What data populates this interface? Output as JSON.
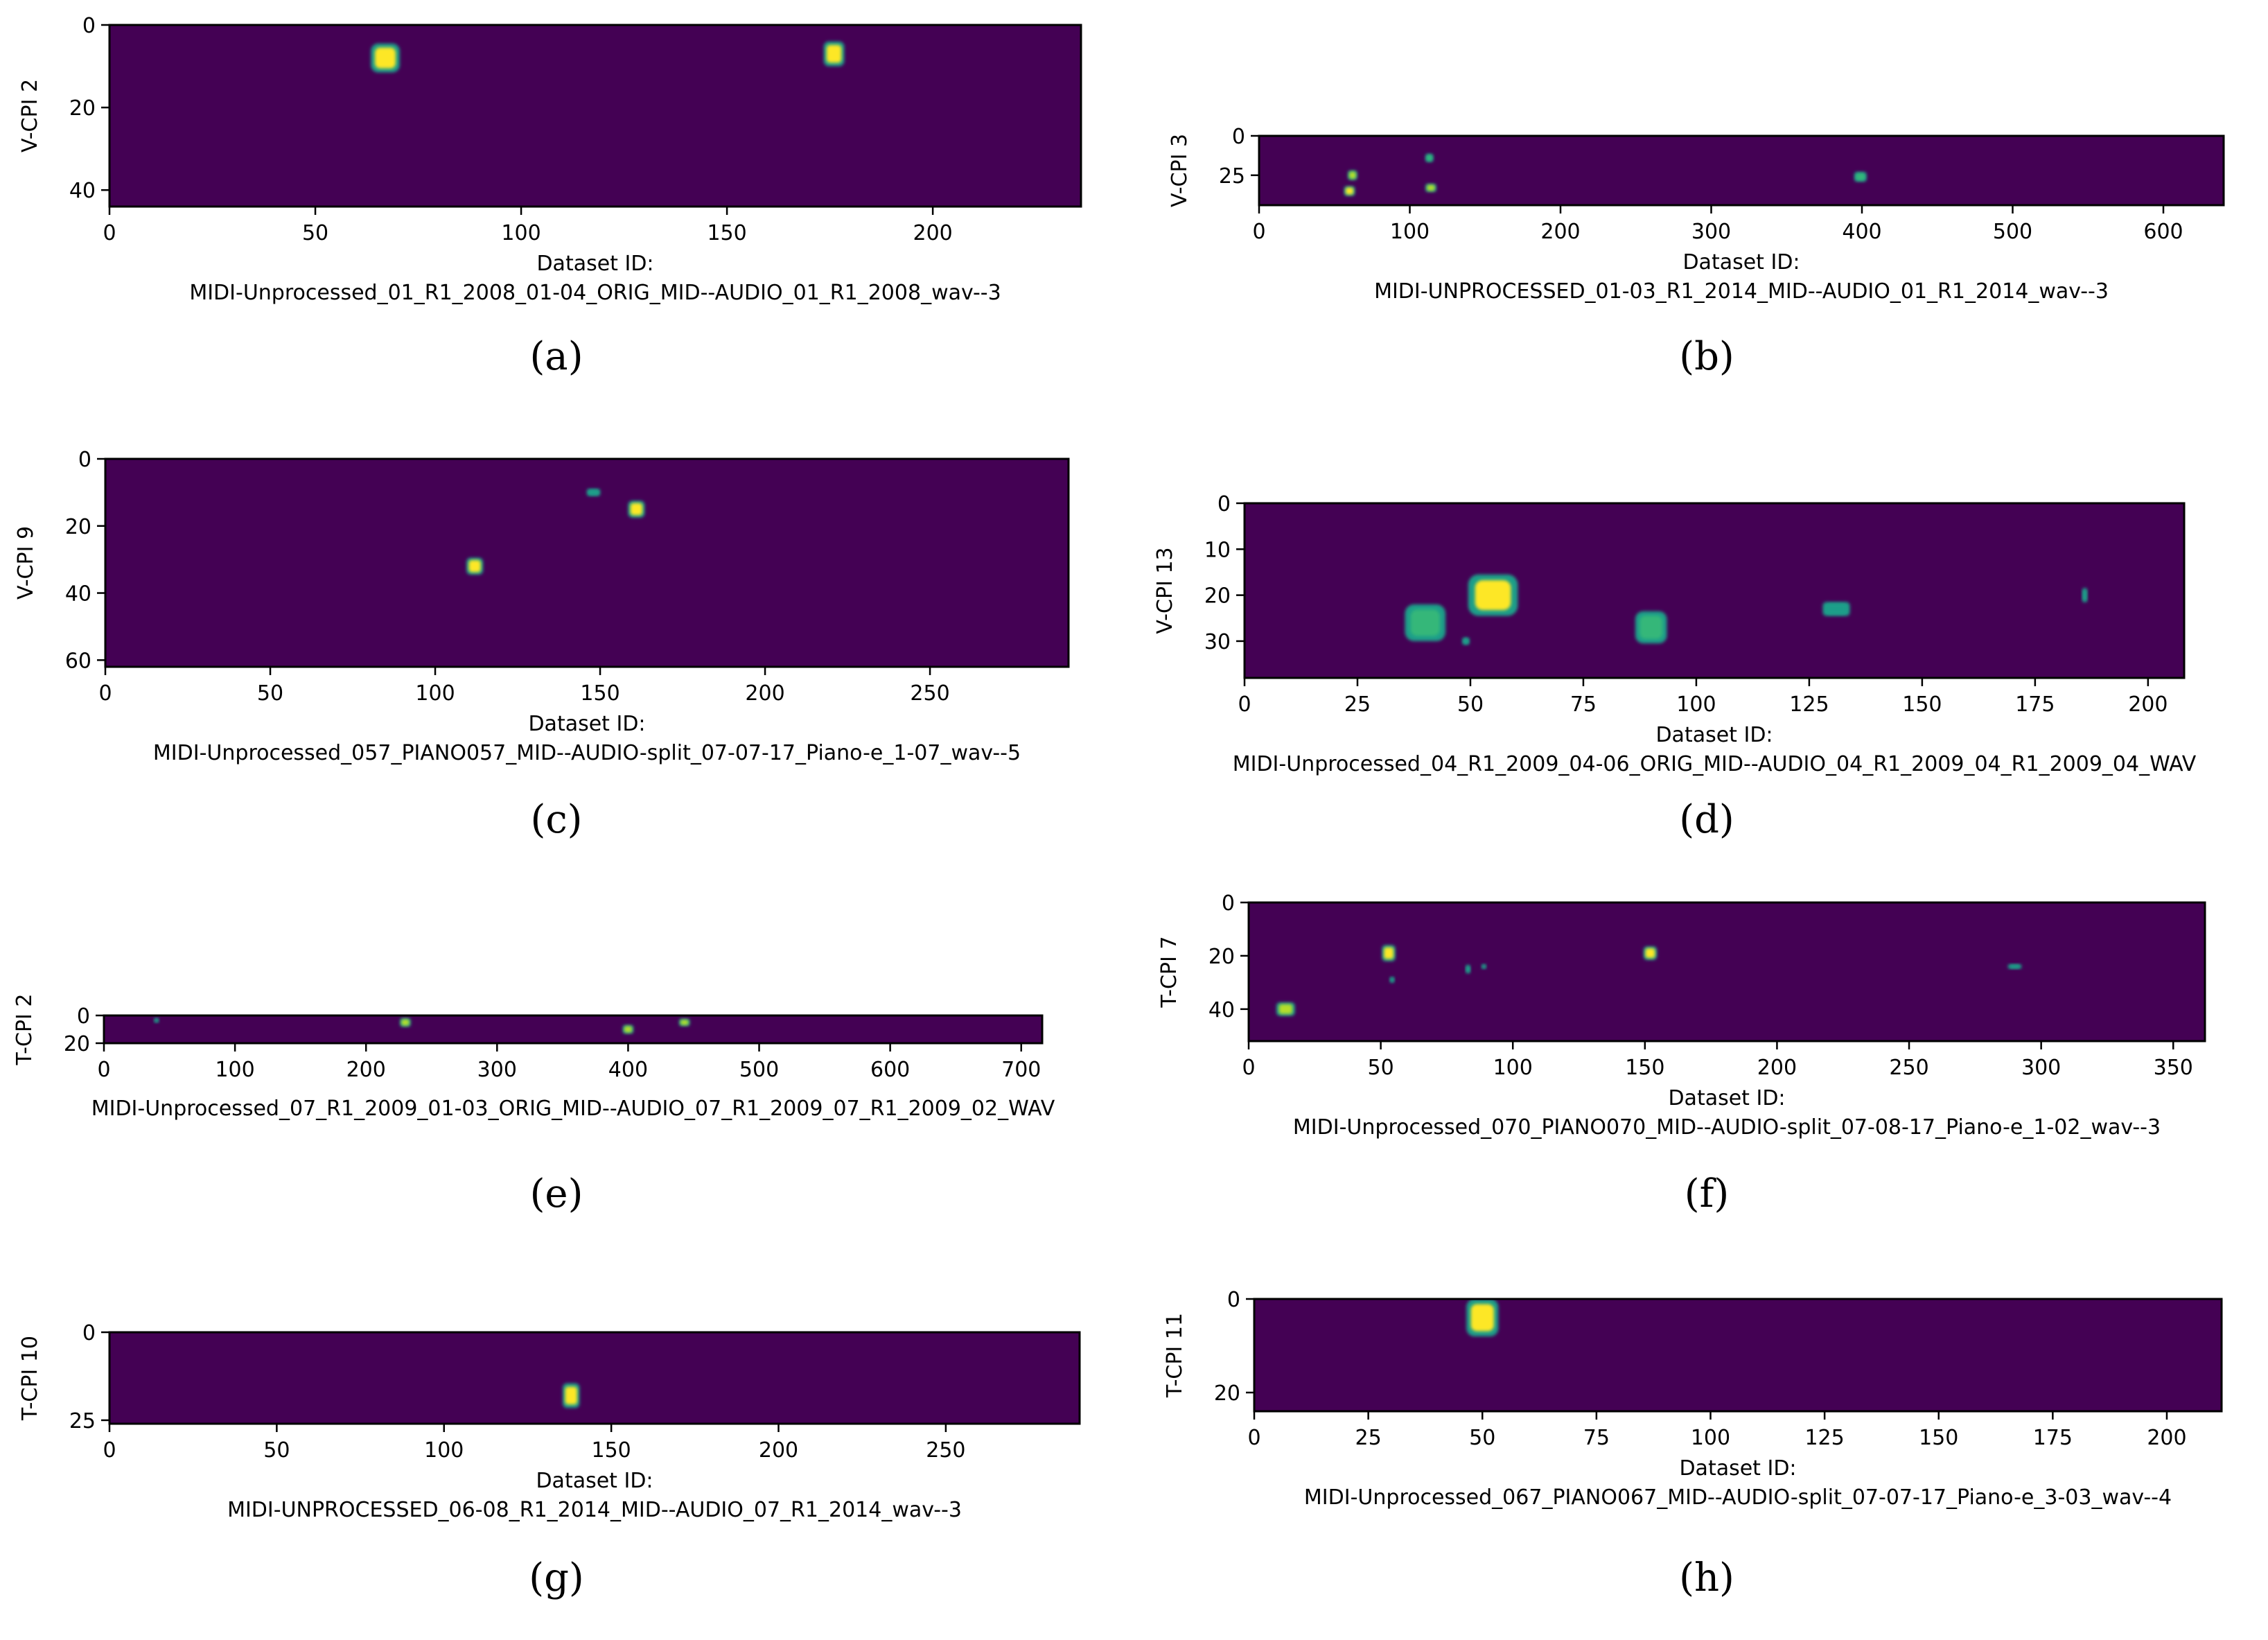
{
  "chart_data": [
    {
      "type": "heatmap",
      "caption": "(a)",
      "ylabel": "V-CPI 2",
      "xlabel": "Dataset ID:",
      "xsublabel": "MIDI-Unprocessed_01_R1_2008_01-04_ORIG_MID--AUDIO_01_R1_2008_wav--3",
      "xlim": [
        0,
        236
      ],
      "ylim": [
        0,
        44
      ],
      "xticks": [
        0,
        50,
        100,
        150,
        200
      ],
      "yticks": [
        0,
        20,
        40
      ],
      "blobs": [
        {
          "x": 67,
          "y": 8,
          "w": 7,
          "h": 7,
          "intensity": 1.0
        },
        {
          "x": 176,
          "y": 7,
          "w": 5,
          "h": 6,
          "intensity": 0.95
        }
      ]
    },
    {
      "type": "heatmap",
      "caption": "(b)",
      "ylabel": "V-CPI 3",
      "xlabel": "Dataset ID:",
      "xsublabel": "MIDI-UNPROCESSED_01-03_R1_2014_MID--AUDIO_01_R1_2014_wav--3",
      "xlim": [
        0,
        640
      ],
      "ylim": [
        0,
        44
      ],
      "xticks": [
        0,
        100,
        200,
        300,
        400,
        500,
        600
      ],
      "yticks": [
        0,
        25
      ],
      "blobs": [
        {
          "x": 62,
          "y": 25,
          "w": 6,
          "h": 6,
          "intensity": 0.7
        },
        {
          "x": 60,
          "y": 35,
          "w": 7,
          "h": 6,
          "intensity": 0.95
        },
        {
          "x": 113,
          "y": 14,
          "w": 5,
          "h": 5,
          "intensity": 0.6
        },
        {
          "x": 114,
          "y": 33,
          "w": 7,
          "h": 5,
          "intensity": 0.8
        },
        {
          "x": 399,
          "y": 26,
          "w": 8,
          "h": 6,
          "intensity": 0.6
        }
      ]
    },
    {
      "type": "heatmap",
      "caption": "(c)",
      "ylabel": "V-CPI 9",
      "xlabel": "Dataset ID:",
      "xsublabel": "MIDI-Unprocessed_057_PIANO057_MID--AUDIO-split_07-07-17_Piano-e_1-07_wav--5",
      "xlim": [
        0,
        292
      ],
      "ylim": [
        0,
        62
      ],
      "xticks": [
        0,
        50,
        100,
        150,
        200,
        250
      ],
      "yticks": [
        0,
        20,
        40,
        60
      ],
      "blobs": [
        {
          "x": 148,
          "y": 10,
          "w": 4,
          "h": 2,
          "intensity": 0.5
        },
        {
          "x": 161,
          "y": 15,
          "w": 5,
          "h": 5,
          "intensity": 1.0
        },
        {
          "x": 112,
          "y": 32,
          "w": 5,
          "h": 5,
          "intensity": 0.9
        }
      ]
    },
    {
      "type": "heatmap",
      "caption": "(d)",
      "ylabel": "V-CPI 13",
      "xlabel": "Dataset ID:",
      "xsublabel": "MIDI-Unprocessed_04_R1_2009_04-06_ORIG_MID--AUDIO_04_R1_2009_04_R1_2009_04_WAV",
      "xlim": [
        0,
        208
      ],
      "ylim": [
        0,
        38
      ],
      "xticks": [
        0,
        25,
        50,
        75,
        100,
        125,
        150,
        175,
        200
      ],
      "yticks": [
        0,
        10,
        20,
        30
      ],
      "blobs": [
        {
          "x": 40,
          "y": 26,
          "w": 9,
          "h": 8,
          "intensity": 0.6
        },
        {
          "x": 55,
          "y": 20,
          "w": 11,
          "h": 9,
          "intensity": 1.0
        },
        {
          "x": 90,
          "y": 27,
          "w": 7,
          "h": 7,
          "intensity": 0.6
        },
        {
          "x": 131,
          "y": 23,
          "w": 6,
          "h": 3,
          "intensity": 0.5
        },
        {
          "x": 186,
          "y": 20,
          "w": 1,
          "h": 3,
          "intensity": 0.45
        },
        {
          "x": 49,
          "y": 30,
          "w": 1.5,
          "h": 1.5,
          "intensity": 0.4
        }
      ]
    },
    {
      "type": "heatmap",
      "caption": "(e)",
      "ylabel": "T-CPI 2",
      "xlabel": "",
      "xsublabel": "MIDI-Unprocessed_07_R1_2009_01-03_ORIG_MID--AUDIO_07_R1_2009_07_R1_2009_02_WAV",
      "xlim": [
        0,
        716
      ],
      "ylim": [
        0,
        20
      ],
      "xticks": [
        0,
        100,
        200,
        300,
        400,
        500,
        600,
        700
      ],
      "yticks": [
        0,
        20
      ],
      "blobs": [
        {
          "x": 40,
          "y": 3,
          "w": 3,
          "h": 2,
          "intensity": 0.4
        },
        {
          "x": 230,
          "y": 5,
          "w": 8,
          "h": 6,
          "intensity": 0.85
        },
        {
          "x": 400,
          "y": 10,
          "w": 8,
          "h": 6,
          "intensity": 0.85
        },
        {
          "x": 443,
          "y": 5,
          "w": 8,
          "h": 5,
          "intensity": 0.7
        }
      ]
    },
    {
      "type": "heatmap",
      "caption": "(f)",
      "ylabel": "T-CPI 7",
      "xlabel": "Dataset ID:",
      "xsublabel": "MIDI-Unprocessed_070_PIANO070_MID--AUDIO-split_07-08-17_Piano-e_1-02_wav--3",
      "xlim": [
        0,
        362
      ],
      "ylim": [
        0,
        52
      ],
      "xticks": [
        0,
        50,
        100,
        150,
        200,
        250,
        300,
        350
      ],
      "yticks": [
        0,
        20,
        40
      ],
      "blobs": [
        {
          "x": 53,
          "y": 19,
          "w": 5,
          "h": 6,
          "intensity": 0.9
        },
        {
          "x": 152,
          "y": 19,
          "w": 5,
          "h": 5,
          "intensity": 0.9
        },
        {
          "x": 14,
          "y": 40,
          "w": 7,
          "h": 5,
          "intensity": 0.75
        },
        {
          "x": 83,
          "y": 25,
          "w": 1.5,
          "h": 3,
          "intensity": 0.45
        },
        {
          "x": 89,
          "y": 24,
          "w": 1.5,
          "h": 1.5,
          "intensity": 0.4
        },
        {
          "x": 54,
          "y": 29,
          "w": 1,
          "h": 2,
          "intensity": 0.4
        },
        {
          "x": 290,
          "y": 24,
          "w": 5,
          "h": 1.5,
          "intensity": 0.45
        }
      ]
    },
    {
      "type": "heatmap",
      "caption": "(g)",
      "ylabel": "T-CPI 10",
      "xlabel": "Dataset ID:",
      "xsublabel": "MIDI-UNPROCESSED_06-08_R1_2014_MID--AUDIO_07_R1_2014_wav--3",
      "xlim": [
        0,
        290
      ],
      "ylim": [
        0,
        26
      ],
      "xticks": [
        0,
        50,
        100,
        150,
        200,
        250
      ],
      "yticks": [
        0,
        25
      ],
      "blobs": [
        {
          "x": 138,
          "y": 18,
          "w": 5,
          "h": 7,
          "intensity": 0.95
        }
      ]
    },
    {
      "type": "heatmap",
      "caption": "(h)",
      "ylabel": "T-CPI 11",
      "xlabel": "Dataset ID:",
      "xsublabel": "MIDI-Unprocessed_067_PIANO067_MID--AUDIO-split_07-07-17_Piano-e_3-03_wav--4",
      "xlim": [
        0,
        212
      ],
      "ylim": [
        0,
        24
      ],
      "xticks": [
        0,
        25,
        50,
        75,
        100,
        125,
        150,
        175,
        200
      ],
      "yticks": [
        0,
        20
      ],
      "blobs": [
        {
          "x": 50,
          "y": 4,
          "w": 7,
          "h": 8,
          "intensity": 1.0
        }
      ]
    }
  ],
  "colors": {
    "background": "#440154",
    "low": "#1f9e89",
    "mid": "#35b779",
    "high": "#fde725"
  }
}
